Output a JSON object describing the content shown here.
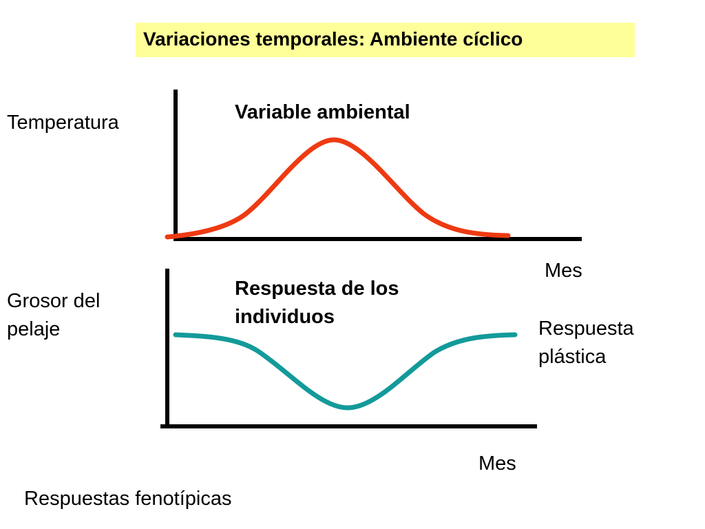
{
  "title": "Variaciones temporales: Ambiente cíclico",
  "top_panel": {
    "y_label": "Temperatura",
    "curve_label": "Variable ambiental",
    "x_label": "Mes",
    "curve_color": "#ee3a12"
  },
  "bottom_panel": {
    "y_label_line1": "Grosor del",
    "y_label_line2": "pelaje",
    "curve_label_line1": "Respuesta de los",
    "curve_label_line2": "individuos",
    "side_label_line1": "Respuesta",
    "side_label_line2": "plástica",
    "x_label": "Mes",
    "curve_color": "#139a9a"
  },
  "footer": "Respuestas fenotípicas"
}
